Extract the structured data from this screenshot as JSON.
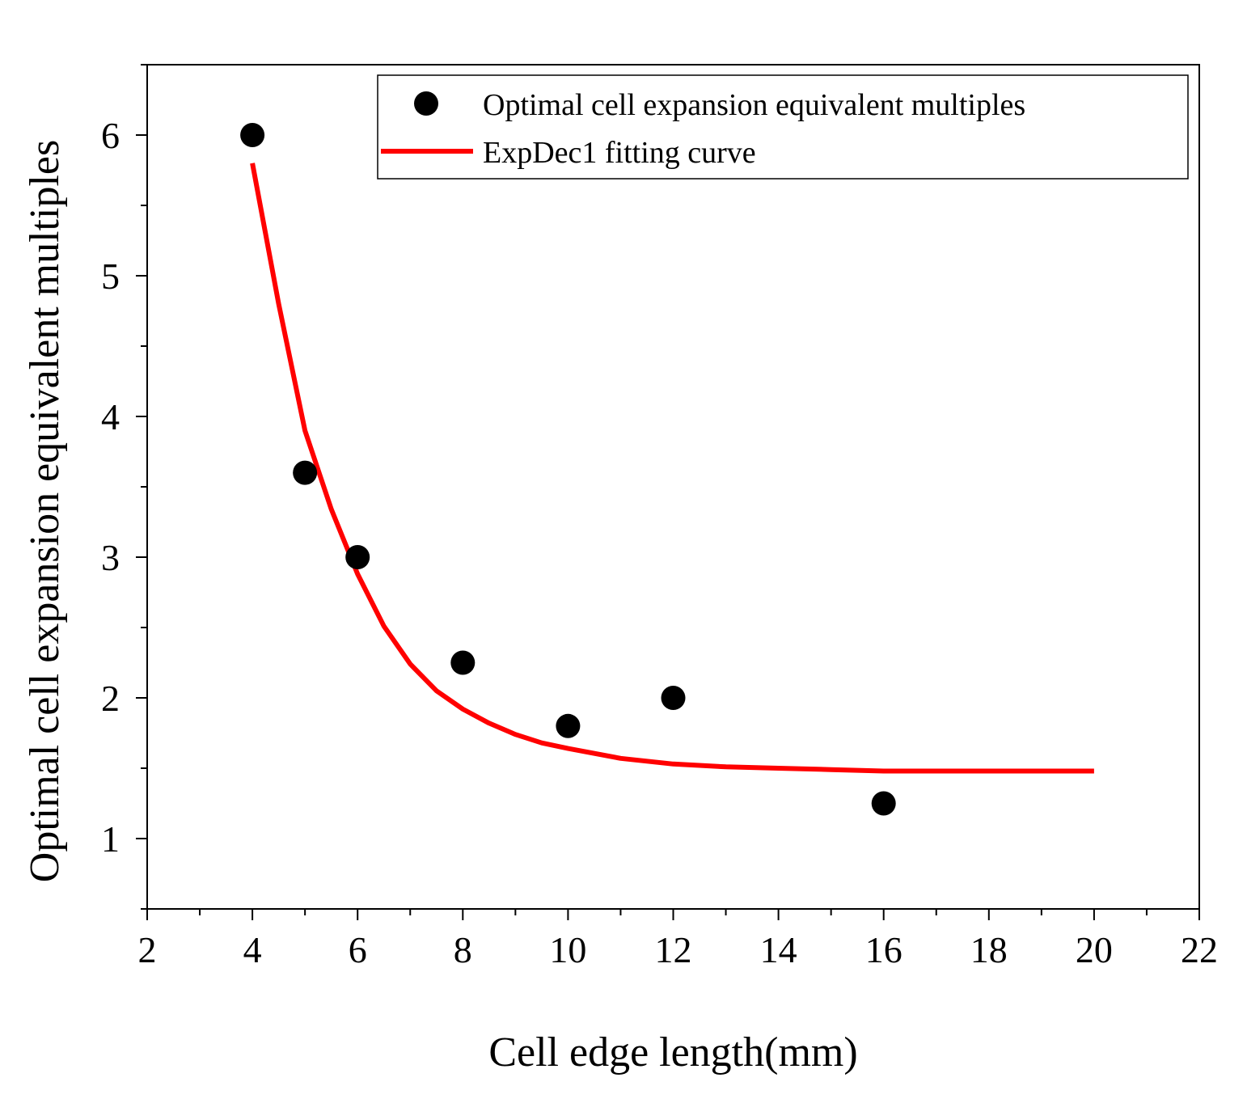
{
  "chart_data": {
    "type": "scatter",
    "title": "",
    "xlabel": "Cell edge length(mm)",
    "ylabel": "Optimal cell expansion equivalent multiples",
    "xlim": [
      2,
      22
    ],
    "ylim": [
      0.5,
      6.5
    ],
    "x_ticks": [
      2,
      4,
      6,
      8,
      10,
      12,
      14,
      16,
      18,
      20,
      22
    ],
    "x_tick_labels": [
      "2",
      "4",
      "6",
      "8",
      "10",
      "12",
      "14",
      "16",
      "18",
      "20",
      "22"
    ],
    "y_ticks": [
      1,
      2,
      3,
      4,
      5,
      6
    ],
    "y_tick_labels": [
      "1",
      "2",
      "3",
      "4",
      "5",
      "6"
    ],
    "legend_position": "top-right",
    "series": [
      {
        "name": "Optimal cell expansion equivalent multiples",
        "kind": "scatter",
        "color": "#000000",
        "x": [
          4,
          5,
          6,
          8,
          10,
          12,
          16
        ],
        "y": [
          6.0,
          3.6,
          3.0,
          2.25,
          1.8,
          2.0,
          1.25
        ]
      },
      {
        "name": "ExpDec1 fitting curve",
        "kind": "line",
        "color": "#ff0000",
        "x": [
          4,
          4.5,
          5,
          5.5,
          6,
          6.5,
          7,
          7.5,
          8,
          8.5,
          9,
          9.5,
          10,
          11,
          12,
          13,
          14,
          15,
          16,
          17,
          18,
          19,
          20
        ],
        "y": [
          5.8,
          4.8,
          3.9,
          3.34,
          2.88,
          2.51,
          2.24,
          2.05,
          1.92,
          1.82,
          1.74,
          1.68,
          1.64,
          1.57,
          1.53,
          1.51,
          1.5,
          1.49,
          1.48,
          1.48,
          1.48,
          1.48,
          1.48
        ]
      }
    ]
  }
}
